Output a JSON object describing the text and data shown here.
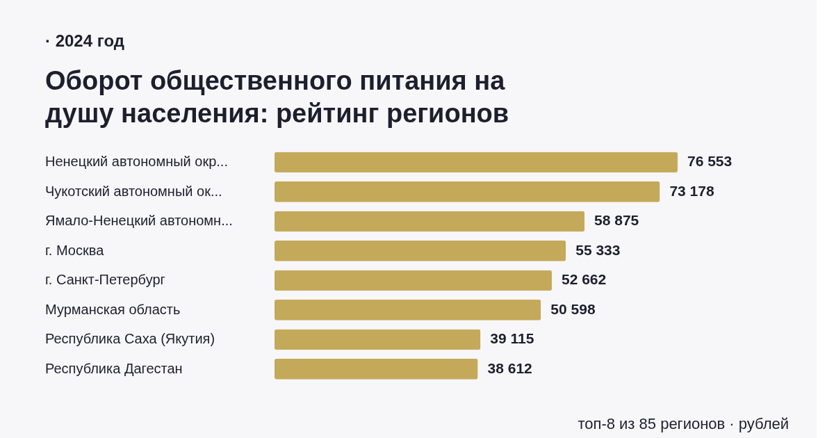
{
  "chart_data": {
    "type": "bar",
    "orientation": "horizontal",
    "title": "Оборот общественного питания на душу населения: рейтинг регионов",
    "subtitle": "· 2024 год",
    "categories": [
      "Ненецкий автономный окр...",
      "Чукотский автономный ок...",
      "Ямало-Ненецкий автономн...",
      "г. Москва",
      "г. Санкт-Петербург",
      "Мурманская область",
      "Республика Саха (Якутия)",
      "Республика Дагестан"
    ],
    "values": [
      76553,
      73178,
      58875,
      55333,
      52662,
      50598,
      39115,
      38612
    ],
    "value_labels": [
      "76 553",
      "73 178",
      "58 875",
      "55 333",
      "52 662",
      "50 598",
      "39 115",
      "38 612"
    ],
    "color": "#c5a95a",
    "annotations": [
      "топ-8 из 85 регионов · рублей"
    ]
  }
}
